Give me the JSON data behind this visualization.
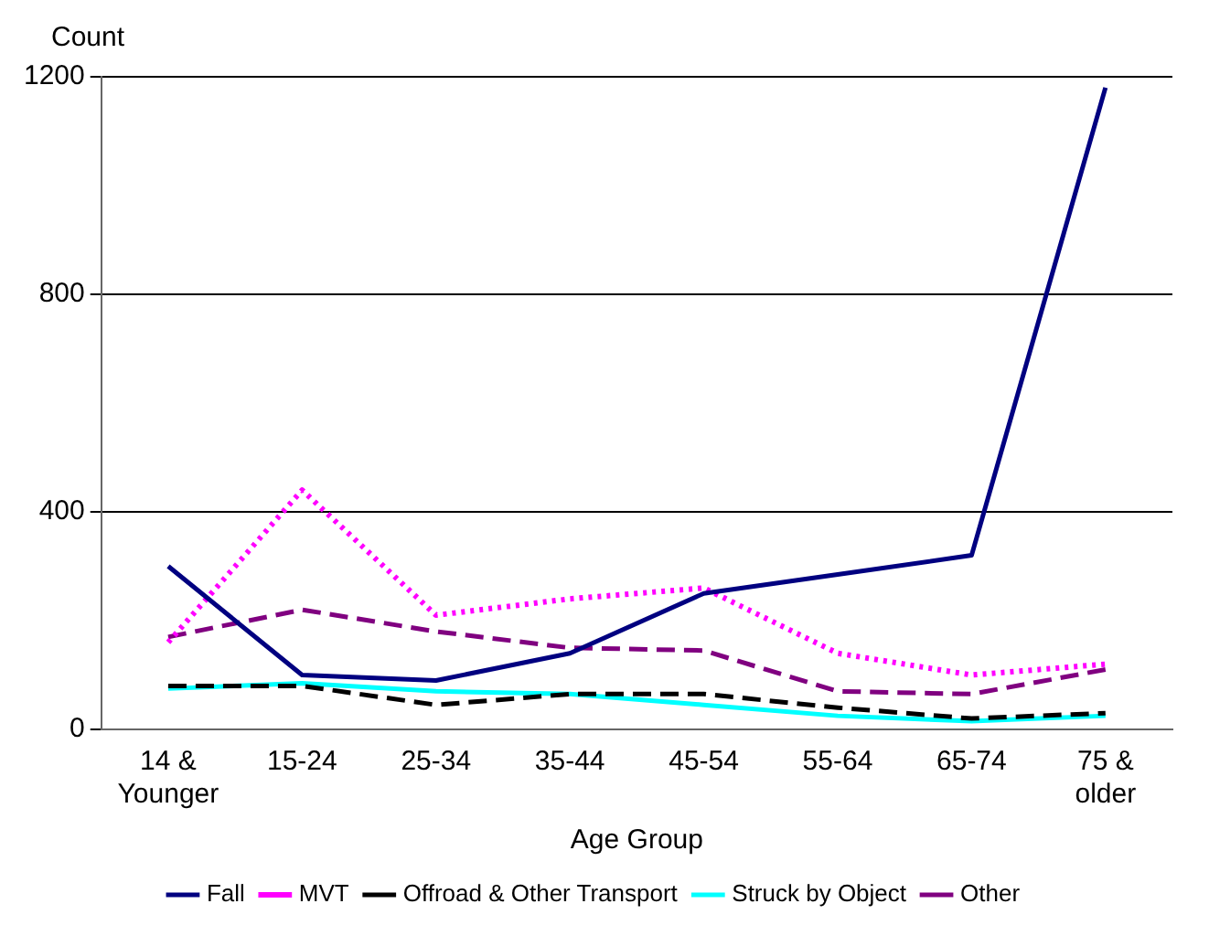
{
  "chart_data": {
    "type": "line",
    "ylabel": "Count",
    "xlabel": "Age Group",
    "categories": [
      "14 & Younger",
      "15-24",
      "25-34",
      "35-44",
      "45-54",
      "55-64",
      "65-74",
      "75 & older"
    ],
    "series": [
      {
        "name": "Fall",
        "color": "#000080",
        "line_style": "solid",
        "values": [
          300,
          100,
          90,
          140,
          250,
          285,
          320,
          1180
        ]
      },
      {
        "name": "MVT",
        "color": "#ff00ff",
        "line_style": "dotted",
        "values": [
          160,
          440,
          210,
          240,
          260,
          140,
          100,
          120
        ]
      },
      {
        "name": "Offroad & Other Transport",
        "color": "#000000",
        "line_style": "dashed",
        "values": [
          80,
          80,
          45,
          65,
          65,
          40,
          20,
          30
        ]
      },
      {
        "name": "Struck by Object",
        "color": "#00ffff",
        "line_style": "solid",
        "values": [
          75,
          85,
          70,
          65,
          45,
          25,
          15,
          25
        ]
      },
      {
        "name": "Other",
        "color": "#800080",
        "line_style": "dashed",
        "values": [
          170,
          220,
          180,
          150,
          145,
          70,
          65,
          110
        ]
      }
    ],
    "ylim": [
      0,
      1200
    ],
    "yticks": [
      0,
      400,
      800,
      1200
    ],
    "grid": "y",
    "legend": "bottom",
    "marker": "none"
  }
}
